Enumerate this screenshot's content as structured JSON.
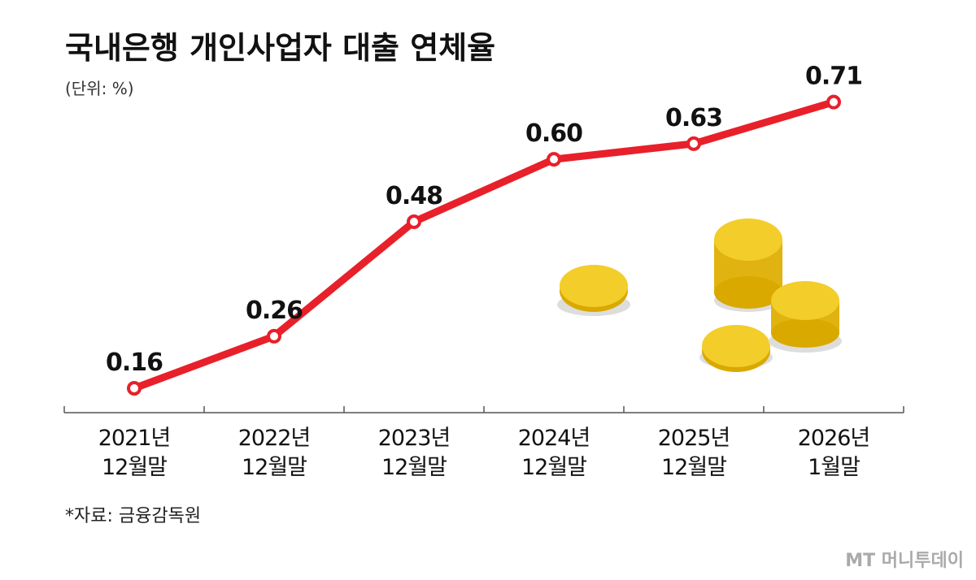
{
  "chart_data": {
    "type": "line",
    "title": "국내은행 개인사업자 대출 연체율",
    "subtitle": "(단위: %)",
    "source": "*자료: 금융감독원",
    "watermark": "MT 머니투데이",
    "categories": [
      "2021년\n12월말",
      "2022년\n12월말",
      "2023년\n12월말",
      "2024년\n12월말",
      "2025년\n12월말",
      "2026년\n1월말"
    ],
    "values": [
      0.16,
      0.26,
      0.48,
      0.6,
      0.63,
      0.71
    ],
    "value_labels": [
      "0.16",
      "0.26",
      "0.48",
      "0.60",
      "0.63",
      "0.71"
    ],
    "color": "#e8202a",
    "ylim": [
      0.11,
      0.8
    ]
  }
}
